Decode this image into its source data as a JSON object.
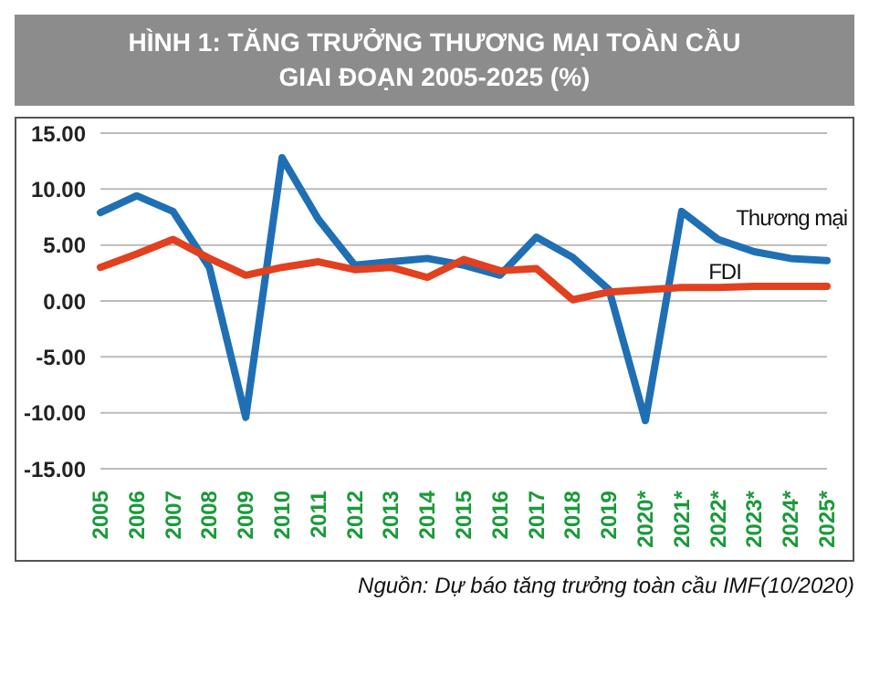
{
  "chart_data": {
    "type": "line",
    "title": "HÌNH 1: TĂNG TRƯỞNG THƯƠNG MẠI TOÀN CẦU\nGIAI ĐOẠN 2005-2025 (%)",
    "categories": [
      "2005",
      "2006",
      "2007",
      "2008",
      "2009",
      "2010",
      "2011",
      "2012",
      "2013",
      "2014",
      "2015",
      "2016",
      "2017",
      "2018",
      "2019",
      "2020*",
      "2021*",
      "2022*",
      "2023*",
      "2024*",
      "2025*"
    ],
    "series": [
      {
        "name": "Thương mại",
        "color": "#1f6fb5",
        "values": [
          7.9,
          9.4,
          8.0,
          3.0,
          -10.4,
          12.8,
          7.3,
          3.2,
          3.5,
          3.8,
          3.2,
          2.3,
          5.7,
          3.9,
          1.0,
          -10.7,
          8.0,
          5.5,
          4.4,
          3.8,
          3.6
        ]
      },
      {
        "name": "FDI",
        "color": "#e2401f",
        "values": [
          3.0,
          4.2,
          5.5,
          3.8,
          2.3,
          3.0,
          3.5,
          2.8,
          3.0,
          2.1,
          3.7,
          2.7,
          2.9,
          0.1,
          0.8,
          1.0,
          1.2,
          1.2,
          1.3,
          1.3,
          1.3
        ]
      }
    ],
    "ylim": [
      -15,
      15
    ],
    "yticks": [
      {
        "value": -15,
        "label": "-15.00"
      },
      {
        "value": -10,
        "label": "-10.00"
      },
      {
        "value": -5,
        "label": "-5.00"
      },
      {
        "value": 0,
        "label": "0.00"
      },
      {
        "value": 5,
        "label": "5.00"
      },
      {
        "value": 10,
        "label": "10.00"
      },
      {
        "value": 15,
        "label": "15.00"
      }
    ],
    "grid": "y",
    "legend": false,
    "marker": "none",
    "line_style": "solid",
    "annotations": [
      "Nguồn: Dự báo tăng trưởng toàn cầu IMF(10/2020)"
    ]
  }
}
